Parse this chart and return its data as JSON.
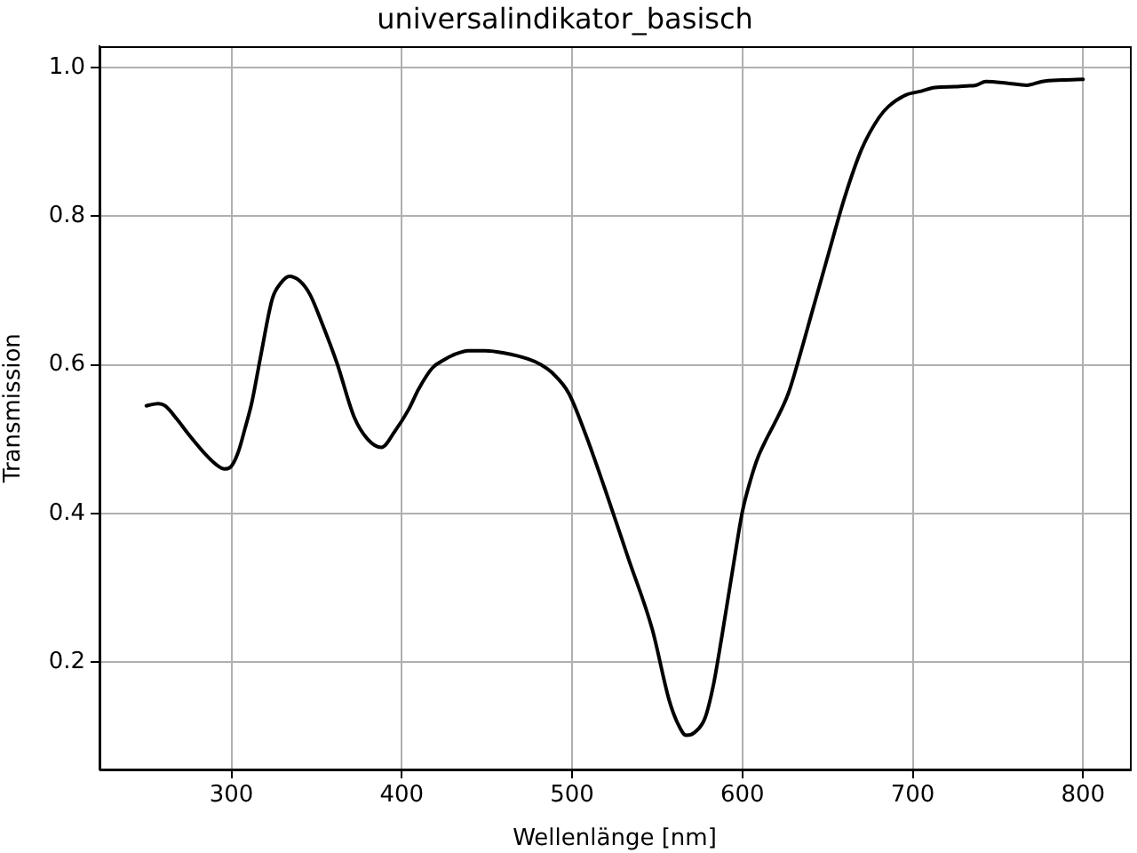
{
  "chart_data": {
    "type": "line",
    "title": "universalindikator_basisch",
    "xlabel": "Wellenlänge [nm]",
    "ylabel": "Transmission",
    "x": [
      250,
      257,
      261,
      268,
      275,
      285,
      291,
      296,
      300,
      304,
      308,
      312,
      317,
      324,
      329,
      334,
      340,
      346,
      353,
      362,
      372,
      380,
      388,
      396,
      404,
      410,
      418,
      425,
      431,
      439,
      449,
      460,
      474,
      482,
      488,
      498,
      508,
      519,
      533,
      547,
      557,
      562,
      567,
      572,
      578,
      583,
      588,
      595,
      600,
      605,
      609,
      614,
      619,
      627,
      634,
      641,
      650,
      660,
      670,
      680,
      686,
      696,
      705,
      713,
      725,
      732,
      737,
      743,
      755,
      767,
      776,
      788,
      800
    ],
    "values": [
      0.545,
      0.548,
      0.545,
      0.527,
      0.506,
      0.479,
      0.466,
      0.46,
      0.464,
      0.483,
      0.515,
      0.55,
      0.61,
      0.689,
      0.71,
      0.719,
      0.713,
      0.695,
      0.657,
      0.602,
      0.53,
      0.5,
      0.489,
      0.511,
      0.54,
      0.568,
      0.596,
      0.607,
      0.614,
      0.619,
      0.619,
      0.616,
      0.608,
      0.6,
      0.59,
      0.562,
      0.506,
      0.435,
      0.34,
      0.245,
      0.149,
      0.118,
      0.102,
      0.106,
      0.125,
      0.17,
      0.236,
      0.335,
      0.403,
      0.447,
      0.475,
      0.5,
      0.522,
      0.562,
      0.615,
      0.672,
      0.745,
      0.825,
      0.89,
      0.932,
      0.948,
      0.963,
      0.968,
      0.973,
      0.974,
      0.975,
      0.976,
      0.981,
      0.979,
      0.976,
      0.981,
      0.983,
      0.984
    ],
    "color": "#000000",
    "xlim": [
      222.5,
      827.5
    ],
    "ylim": [
      0.056,
      1.028
    ],
    "xticks": [
      300,
      400,
      500,
      600,
      700,
      800
    ],
    "yticks": [
      0.2,
      0.4,
      0.6,
      0.8,
      {
        "value": 1,
        "label": "1.0"
      }
    ],
    "grid": true
  }
}
